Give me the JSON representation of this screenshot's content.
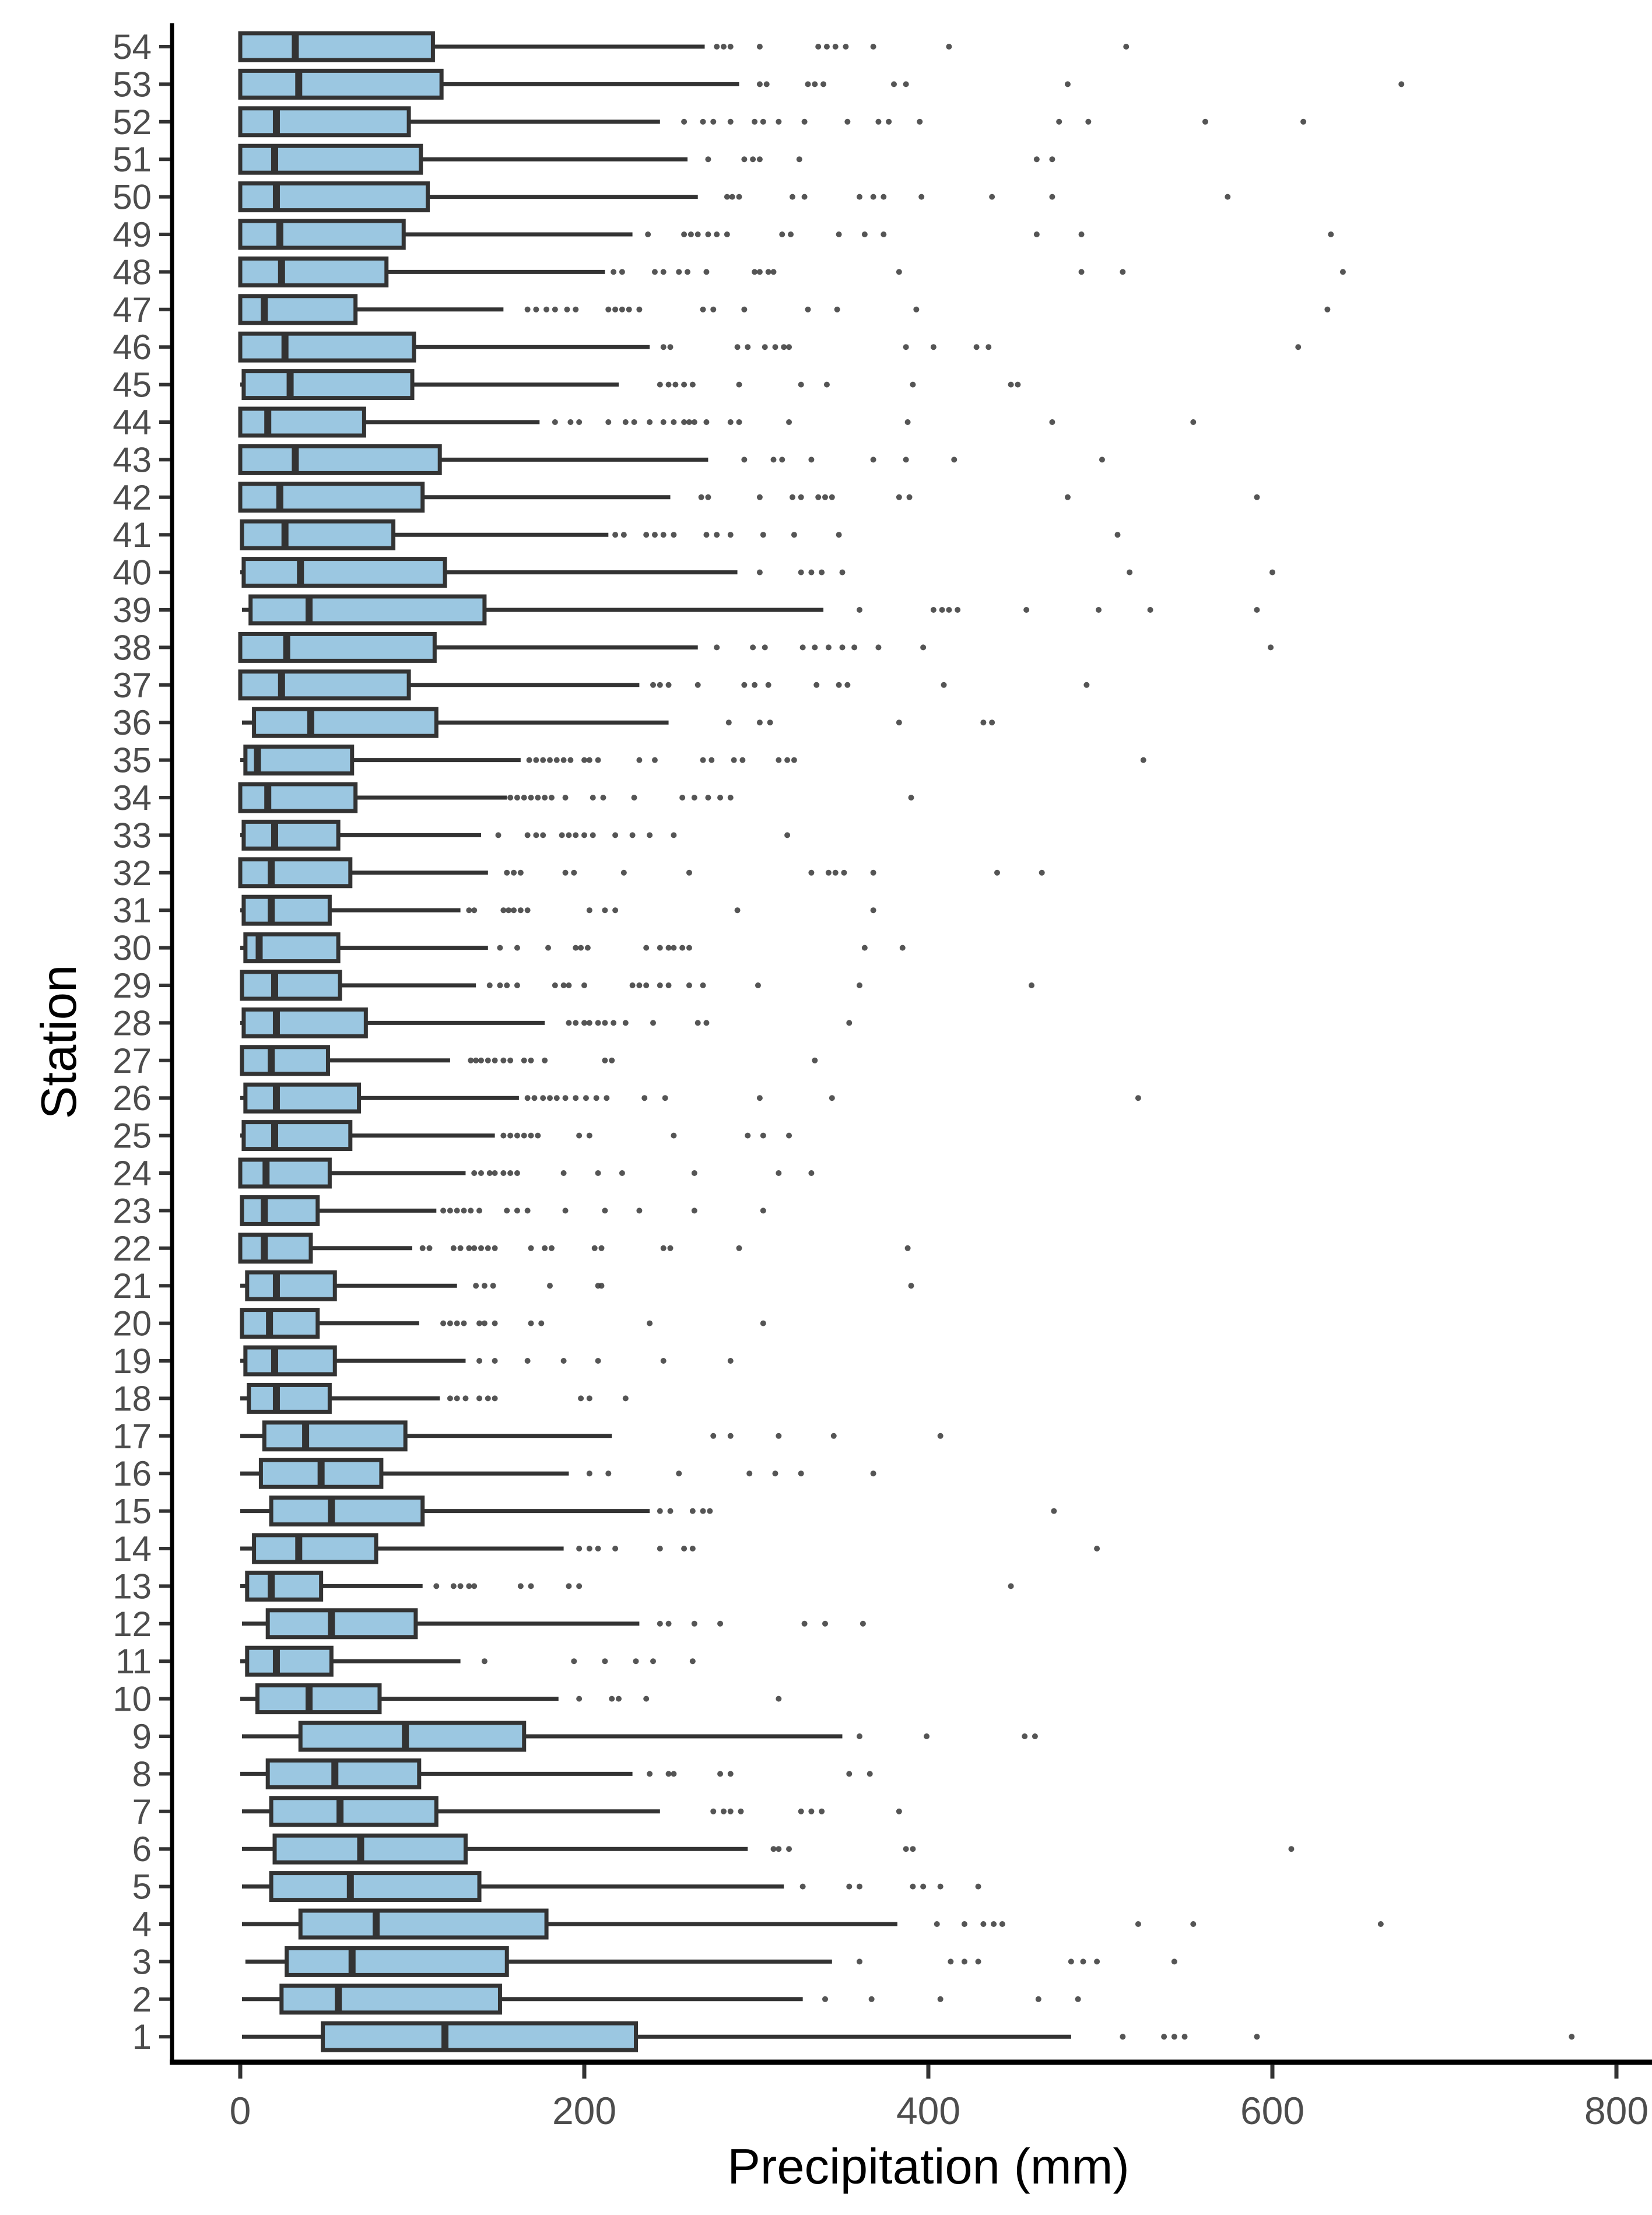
{
  "figure": {
    "xlabel": "Precipitation (mm)",
    "ylabel": "Station"
  },
  "colors": {
    "background": "#FFFFFF",
    "box_fill": "#9BC7E1",
    "box_stroke": "#333333",
    "whisker": "#333333",
    "median": "#333333",
    "outlier": "#434343",
    "axis_line": "#000000",
    "tick_mark": "#333333",
    "tick_label": "#4D4D4D",
    "axis_title": "#000000"
  },
  "chart_data": {
    "type": "boxplot",
    "orientation": "horizontal",
    "title": "",
    "xlabel": "Precipitation (mm)",
    "ylabel": "Station",
    "x_ticks": [
      0,
      200,
      400,
      600,
      800
    ],
    "xlim": [
      0,
      834
    ],
    "grid": false,
    "legend": false,
    "boxes": [
      {
        "station": 54,
        "low": 0,
        "q1": 0,
        "median": 32,
        "q3": 112,
        "high": 270,
        "outliers": [
          277,
          281,
          285,
          302,
          336,
          341,
          346,
          352,
          368,
          412,
          515
        ]
      },
      {
        "station": 53,
        "low": 0,
        "q1": 0,
        "median": 34,
        "q3": 117,
        "high": 290,
        "outliers": [
          302,
          306,
          330,
          334,
          339,
          380,
          387,
          481,
          675
        ]
      },
      {
        "station": 52,
        "low": 0,
        "q1": 0,
        "median": 21,
        "q3": 98,
        "high": 244,
        "outliers": [
          258,
          269,
          275,
          285,
          299,
          304,
          313,
          328,
          353,
          371,
          377,
          395,
          476,
          493,
          561,
          618
        ]
      },
      {
        "station": 51,
        "low": 0,
        "q1": 0,
        "median": 20,
        "q3": 105,
        "high": 260,
        "outliers": [
          272,
          293,
          298,
          302,
          325,
          463,
          472
        ]
      },
      {
        "station": 50,
        "low": 0,
        "q1": 0,
        "median": 21,
        "q3": 109,
        "high": 266,
        "outliers": [
          283,
          286,
          290,
          321,
          328,
          360,
          368,
          374,
          396,
          437,
          472,
          574
        ]
      },
      {
        "station": 49,
        "low": 0,
        "q1": 0,
        "median": 23,
        "q3": 95,
        "high": 228,
        "outliers": [
          237,
          258,
          262,
          266,
          272,
          277,
          283,
          315,
          320,
          348,
          363,
          374,
          463,
          489,
          634
        ]
      },
      {
        "station": 48,
        "low": 0,
        "q1": 0,
        "median": 24,
        "q3": 85,
        "high": 212,
        "outliers": [
          217,
          222,
          241,
          246,
          255,
          260,
          271,
          299,
          302,
          307,
          310,
          383,
          489,
          513,
          641
        ]
      },
      {
        "station": 47,
        "low": 0,
        "q1": 0,
        "median": 14,
        "q3": 67,
        "high": 153,
        "outliers": [
          167,
          172,
          178,
          183,
          190,
          195,
          214,
          218,
          222,
          226,
          232,
          269,
          275,
          293,
          330,
          347,
          393,
          632
        ]
      },
      {
        "station": 46,
        "low": 0,
        "q1": 0,
        "median": 26,
        "q3": 101,
        "high": 238,
        "outliers": [
          246,
          250,
          289,
          295,
          305,
          311,
          316,
          319,
          387,
          403,
          428,
          435,
          615
        ]
      },
      {
        "station": 45,
        "low": 0,
        "q1": 2,
        "median": 29,
        "q3": 100,
        "high": 220,
        "outliers": [
          244,
          249,
          253,
          258,
          263,
          290,
          326,
          341,
          391,
          448,
          452
        ]
      },
      {
        "station": 44,
        "low": 0,
        "q1": 0,
        "median": 16,
        "q3": 72,
        "high": 174,
        "outliers": [
          183,
          192,
          197,
          214,
          224,
          229,
          238,
          246,
          252,
          258,
          261,
          264,
          271,
          285,
          290,
          319,
          388,
          472,
          554
        ]
      },
      {
        "station": 43,
        "low": 0,
        "q1": 0,
        "median": 32,
        "q3": 116,
        "high": 272,
        "outliers": [
          293,
          310,
          315,
          332,
          368,
          387,
          415,
          501
        ]
      },
      {
        "station": 42,
        "low": 0,
        "q1": 0,
        "median": 23,
        "q3": 106,
        "high": 250,
        "outliers": [
          268,
          272,
          302,
          321,
          326,
          336,
          340,
          344,
          383,
          389,
          481,
          591
        ]
      },
      {
        "station": 41,
        "low": 0,
        "q1": 1,
        "median": 26,
        "q3": 89,
        "high": 214,
        "outliers": [
          218,
          223,
          236,
          241,
          246,
          252,
          271,
          277,
          285,
          304,
          322,
          348,
          510
        ]
      },
      {
        "station": 40,
        "low": 0,
        "q1": 2,
        "median": 35,
        "q3": 119,
        "high": 289,
        "outliers": [
          302,
          326,
          332,
          338,
          350,
          517,
          600
        ]
      },
      {
        "station": 39,
        "low": 1,
        "q1": 6,
        "median": 40,
        "q3": 142,
        "high": 339,
        "outliers": [
          360,
          403,
          408,
          412,
          417,
          457,
          499,
          529,
          591
        ]
      },
      {
        "station": 38,
        "low": 0,
        "q1": 0,
        "median": 27,
        "q3": 113,
        "high": 266,
        "outliers": [
          277,
          298,
          305,
          327,
          334,
          342,
          350,
          357,
          371,
          397,
          599
        ]
      },
      {
        "station": 37,
        "low": 0,
        "q1": 0,
        "median": 24,
        "q3": 98,
        "high": 232,
        "outliers": [
          240,
          244,
          249,
          266,
          293,
          299,
          307,
          335,
          348,
          353,
          409,
          492
        ]
      },
      {
        "station": 36,
        "low": 1,
        "q1": 8,
        "median": 41,
        "q3": 114,
        "high": 249,
        "outliers": [
          284,
          302,
          308,
          383,
          432,
          437
        ]
      },
      {
        "station": 35,
        "low": 0,
        "q1": 3,
        "median": 10,
        "q3": 65,
        "high": 163,
        "outliers": [
          168,
          172,
          176,
          180,
          184,
          188,
          192,
          200,
          203,
          208,
          232,
          241,
          269,
          274,
          287,
          292,
          313,
          318,
          322,
          525
        ]
      },
      {
        "station": 34,
        "low": 0,
        "q1": 0,
        "median": 16,
        "q3": 67,
        "high": 155,
        "outliers": [
          157,
          161,
          165,
          169,
          173,
          177,
          181,
          189,
          205,
          211,
          229,
          257,
          264,
          272,
          279,
          285,
          390
        ]
      },
      {
        "station": 33,
        "low": 0,
        "q1": 2,
        "median": 20,
        "q3": 57,
        "high": 140,
        "outliers": [
          150,
          167,
          172,
          176,
          187,
          191,
          195,
          200,
          205,
          218,
          228,
          238,
          252,
          318
        ]
      },
      {
        "station": 32,
        "low": 0,
        "q1": 0,
        "median": 18,
        "q3": 64,
        "high": 144,
        "outliers": [
          155,
          159,
          163,
          189,
          194,
          223,
          261,
          332,
          342,
          346,
          351,
          368,
          440,
          466
        ]
      },
      {
        "station": 31,
        "low": 0,
        "q1": 2,
        "median": 18,
        "q3": 52,
        "high": 128,
        "outliers": [
          133,
          136,
          153,
          156,
          159,
          163,
          167,
          203,
          212,
          218,
          289,
          368
        ]
      },
      {
        "station": 30,
        "low": 0,
        "q1": 3,
        "median": 11,
        "q3": 57,
        "high": 144,
        "outliers": [
          151,
          161,
          179,
          195,
          198,
          202,
          236,
          244,
          249,
          252,
          257,
          261,
          363,
          385
        ]
      },
      {
        "station": 29,
        "low": 0,
        "q1": 1,
        "median": 20,
        "q3": 58,
        "high": 137,
        "outliers": [
          145,
          151,
          155,
          161,
          183,
          188,
          191,
          200,
          228,
          232,
          236,
          244,
          249,
          261,
          269,
          301,
          360,
          460
        ]
      },
      {
        "station": 28,
        "low": 0,
        "q1": 2,
        "median": 21,
        "q3": 73,
        "high": 177,
        "outliers": [
          191,
          195,
          200,
          203,
          208,
          212,
          217,
          224,
          240,
          266,
          271,
          354
        ]
      },
      {
        "station": 27,
        "low": 0,
        "q1": 1,
        "median": 18,
        "q3": 51,
        "high": 122,
        "outliers": [
          134,
          137,
          140,
          144,
          148,
          153,
          157,
          165,
          169,
          177,
          212,
          216,
          334
        ]
      },
      {
        "station": 26,
        "low": 0,
        "q1": 3,
        "median": 21,
        "q3": 69,
        "high": 162,
        "outliers": [
          167,
          171,
          176,
          180,
          184,
          189,
          195,
          201,
          207,
          213,
          235,
          247,
          302,
          344,
          522
        ]
      },
      {
        "station": 25,
        "low": 0,
        "q1": 2,
        "median": 20,
        "q3": 64,
        "high": 148,
        "outliers": [
          153,
          157,
          161,
          165,
          169,
          173,
          197,
          203,
          252,
          295,
          304,
          319
        ]
      },
      {
        "station": 24,
        "low": 0,
        "q1": 0,
        "median": 15,
        "q3": 52,
        "high": 131,
        "outliers": [
          136,
          140,
          145,
          148,
          153,
          157,
          161,
          188,
          208,
          222,
          264,
          313,
          332
        ]
      },
      {
        "station": 23,
        "low": 0,
        "q1": 1,
        "median": 14,
        "q3": 45,
        "high": 114,
        "outliers": [
          118,
          122,
          126,
          130,
          134,
          139,
          155,
          161,
          167,
          189,
          212,
          232,
          264,
          304
        ]
      },
      {
        "station": 22,
        "low": 0,
        "q1": 0,
        "median": 14,
        "q3": 41,
        "high": 100,
        "outliers": [
          106,
          110,
          124,
          128,
          133,
          136,
          140,
          144,
          148,
          169,
          177,
          181,
          206,
          210,
          246,
          250,
          290,
          388
        ]
      },
      {
        "station": 21,
        "low": 0,
        "q1": 4,
        "median": 21,
        "q3": 55,
        "high": 126,
        "outliers": [
          137,
          142,
          147,
          180,
          208,
          210,
          390
        ]
      },
      {
        "station": 20,
        "low": 0,
        "q1": 1,
        "median": 17,
        "q3": 45,
        "high": 104,
        "outliers": [
          118,
          122,
          126,
          130,
          139,
          142,
          148,
          169,
          175,
          238,
          304
        ]
      },
      {
        "station": 19,
        "low": 0,
        "q1": 3,
        "median": 20,
        "q3": 55,
        "high": 131,
        "outliers": [
          139,
          148,
          167,
          188,
          208,
          246,
          285
        ]
      },
      {
        "station": 18,
        "low": 0,
        "q1": 5,
        "median": 21,
        "q3": 52,
        "high": 116,
        "outliers": [
          122,
          126,
          131,
          139,
          144,
          148,
          198,
          203,
          224
        ]
      },
      {
        "station": 17,
        "low": 0,
        "q1": 14,
        "median": 38,
        "q3": 96,
        "high": 216,
        "outliers": [
          275,
          285,
          313,
          345,
          407
        ]
      },
      {
        "station": 16,
        "low": 0,
        "q1": 12,
        "median": 47,
        "q3": 82,
        "high": 191,
        "outliers": [
          203,
          214,
          255,
          296,
          311,
          326,
          368
        ]
      },
      {
        "station": 15,
        "low": 0,
        "q1": 18,
        "median": 53,
        "q3": 106,
        "high": 238,
        "outliers": [
          244,
          250,
          263,
          269,
          273,
          473
        ]
      },
      {
        "station": 14,
        "low": 0,
        "q1": 8,
        "median": 34,
        "q3": 79,
        "high": 188,
        "outliers": [
          197,
          203,
          208,
          218,
          244,
          258,
          263,
          498
        ]
      },
      {
        "station": 13,
        "low": 0,
        "q1": 4,
        "median": 18,
        "q3": 47,
        "high": 106,
        "outliers": [
          114,
          124,
          128,
          133,
          136,
          163,
          169,
          191,
          197,
          448
        ]
      },
      {
        "station": 12,
        "low": 1,
        "q1": 16,
        "median": 53,
        "q3": 102,
        "high": 232,
        "outliers": [
          244,
          249,
          264,
          279,
          328,
          340,
          362
        ]
      },
      {
        "station": 11,
        "low": 0,
        "q1": 4,
        "median": 21,
        "q3": 53,
        "high": 128,
        "outliers": [
          142,
          194,
          212,
          230,
          240,
          263
        ]
      },
      {
        "station": 10,
        "low": 0,
        "q1": 10,
        "median": 40,
        "q3": 81,
        "high": 185,
        "outliers": [
          197,
          216,
          220,
          236,
          313
        ]
      },
      {
        "station": 9,
        "low": 1,
        "q1": 35,
        "median": 96,
        "q3": 165,
        "high": 350,
        "outliers": [
          360,
          399,
          456,
          462
        ]
      },
      {
        "station": 8,
        "low": 0,
        "q1": 16,
        "median": 55,
        "q3": 104,
        "high": 228,
        "outliers": [
          238,
          249,
          252,
          279,
          285,
          354,
          366
        ]
      },
      {
        "station": 7,
        "low": 1,
        "q1": 18,
        "median": 58,
        "q3": 114,
        "high": 244,
        "outliers": [
          275,
          281,
          285,
          291,
          326,
          332,
          338,
          383
        ]
      },
      {
        "station": 6,
        "low": 1,
        "q1": 20,
        "median": 70,
        "q3": 131,
        "high": 295,
        "outliers": [
          310,
          313,
          319,
          387,
          391,
          611
        ]
      },
      {
        "station": 5,
        "low": 1,
        "q1": 18,
        "median": 64,
        "q3": 139,
        "high": 316,
        "outliers": [
          327,
          354,
          360,
          391,
          397,
          407,
          429
        ]
      },
      {
        "station": 4,
        "low": 1,
        "q1": 35,
        "median": 79,
        "q3": 178,
        "high": 382,
        "outliers": [
          405,
          421,
          432,
          438,
          443,
          522,
          554,
          663
        ]
      },
      {
        "station": 3,
        "low": 3,
        "q1": 27,
        "median": 65,
        "q3": 155,
        "high": 344,
        "outliers": [
          360,
          413,
          421,
          429,
          483,
          490,
          498,
          543
        ]
      },
      {
        "station": 2,
        "low": 1,
        "q1": 24,
        "median": 57,
        "q3": 151,
        "high": 327,
        "outliers": [
          340,
          367,
          407,
          464,
          487
        ]
      },
      {
        "station": 1,
        "low": 1,
        "q1": 48,
        "median": 119,
        "q3": 230,
        "high": 483,
        "outliers": [
          513,
          537,
          543,
          549,
          591,
          774
        ]
      }
    ]
  }
}
